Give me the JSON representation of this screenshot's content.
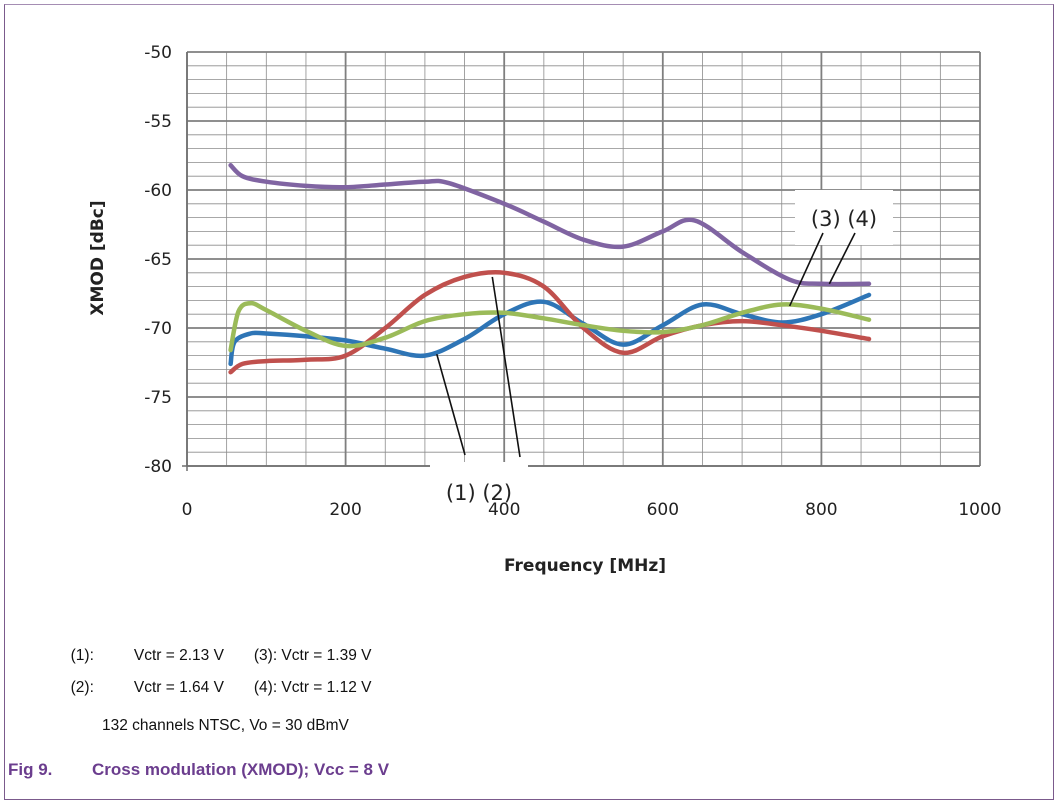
{
  "chart_data": {
    "type": "line",
    "xlabel": "Frequency [MHz]",
    "ylabel": "XMOD [dBc]",
    "xlim": [
      0,
      1000
    ],
    "ylim": [
      -80,
      -50
    ],
    "x_ticks": [
      "0",
      "200",
      "400",
      "600",
      "800",
      "1000"
    ],
    "y_ticks": [
      "-50",
      "-55",
      "-60",
      "-65",
      "-70",
      "-75",
      "-80"
    ],
    "grid": true,
    "series": [
      {
        "color": "#2e75b6",
        "x": [
          55,
          60,
          80,
          100,
          150,
          200,
          250,
          300,
          350,
          400,
          450,
          500,
          550,
          600,
          650,
          700,
          750,
          800,
          860
        ],
        "y": [
          -72.6,
          -71.0,
          -70.4,
          -70.4,
          -70.6,
          -70.9,
          -71.5,
          -72.0,
          -70.8,
          -69.0,
          -68.1,
          -69.7,
          -71.2,
          -69.8,
          -68.3,
          -69.0,
          -69.6,
          -69.0,
          -67.6
        ]
      },
      {
        "color": "#c0504d",
        "x": [
          55,
          70,
          100,
          150,
          200,
          250,
          300,
          350,
          400,
          450,
          500,
          550,
          600,
          650,
          700,
          750,
          800,
          860
        ],
        "y": [
          -73.2,
          -72.6,
          -72.4,
          -72.3,
          -72.0,
          -70.0,
          -67.6,
          -66.3,
          -66.0,
          -67.0,
          -70.0,
          -71.8,
          -70.6,
          -69.8,
          -69.5,
          -69.8,
          -70.2,
          -70.8
        ]
      },
      {
        "color": "#9bbb59",
        "x": [
          55,
          65,
          80,
          100,
          150,
          200,
          250,
          300,
          350,
          400,
          450,
          500,
          550,
          600,
          650,
          700,
          750,
          800,
          860
        ],
        "y": [
          -71.6,
          -68.8,
          -68.2,
          -68.7,
          -70.2,
          -71.3,
          -70.7,
          -69.5,
          -69.0,
          -68.9,
          -69.3,
          -69.8,
          -70.2,
          -70.3,
          -69.8,
          -68.9,
          -68.3,
          -68.6,
          -69.4
        ]
      },
      {
        "color": "#8064a2",
        "x": [
          55,
          70,
          100,
          150,
          200,
          250,
          300,
          330,
          400,
          450,
          500,
          550,
          600,
          640,
          700,
          760,
          800,
          860
        ],
        "y": [
          -58.2,
          -59.0,
          -59.4,
          -59.7,
          -59.8,
          -59.6,
          -59.4,
          -59.5,
          -61.0,
          -62.3,
          -63.6,
          -64.1,
          -63.0,
          -62.2,
          -64.5,
          -66.5,
          -66.8,
          -66.8
        ]
      }
    ],
    "callouts": [
      {
        "text": "(1) (2)"
      },
      {
        "text": "(3) (4)"
      }
    ]
  },
  "legend": {
    "row1_left_num": "(1):",
    "row1_left_val": "Vctr = 2.13 V",
    "row1_right": "(3): Vctr = 1.39 V",
    "row2_left_num": "(2):",
    "row2_left_val": "Vctr = 1.64 V",
    "row2_right": "(4): Vctr = 1.12 V"
  },
  "note": "132 channels NTSC, Vo = 30 dBmV",
  "caption": {
    "number": "Fig 9.",
    "title": "Cross modulation (XMOD); Vcc = 8 V"
  }
}
